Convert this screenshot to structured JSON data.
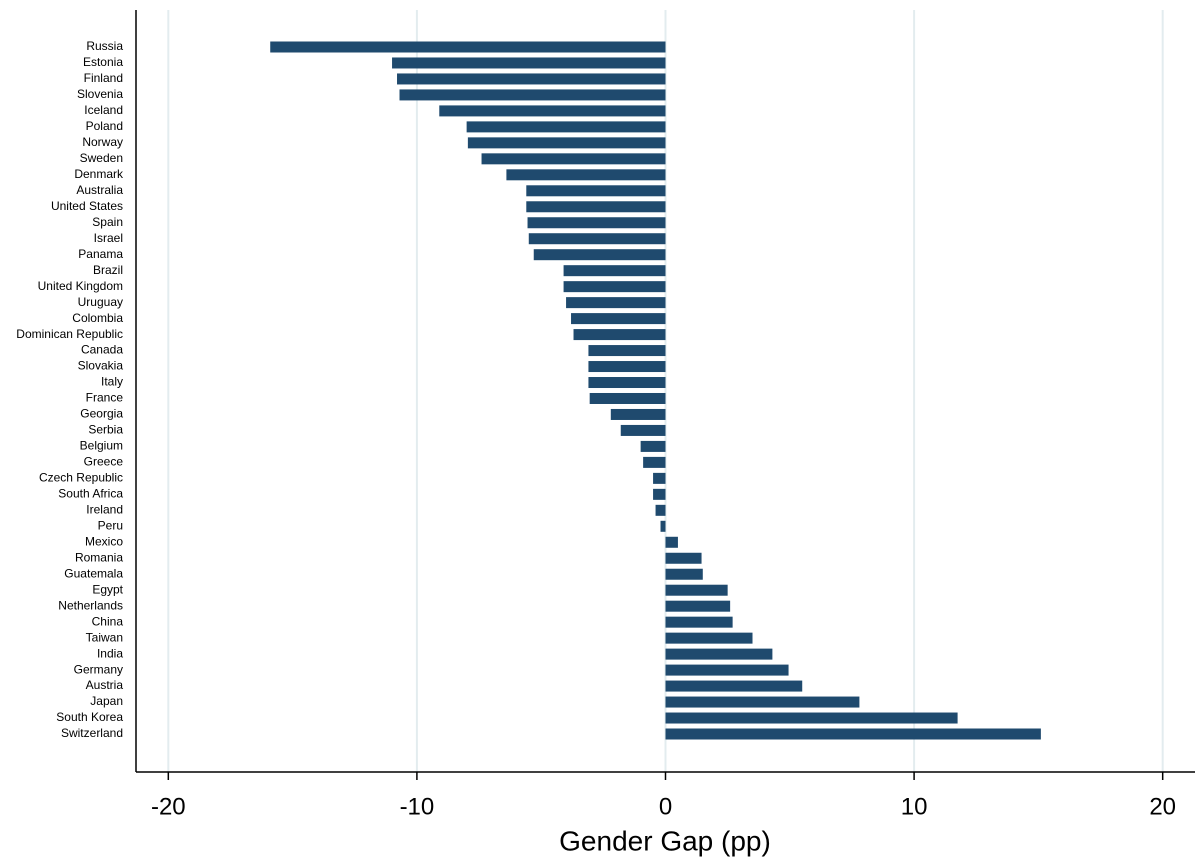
{
  "chart_data": {
    "type": "bar",
    "orientation": "horizontal",
    "x_label": "Gender Gap (pp)",
    "categories": [
      "Russia",
      "Estonia",
      "Finland",
      "Slovenia",
      "Iceland",
      "Poland",
      "Norway",
      "Sweden",
      "Denmark",
      "Australia",
      "United States",
      "Spain",
      "Israel",
      "Panama",
      "Brazil",
      "United Kingdom",
      "Uruguay",
      "Colombia",
      "Dominican Republic",
      "Canada",
      "Slovakia",
      "Italy",
      "France",
      "Georgia",
      "Serbia",
      "Belgium",
      "Greece",
      "Czech Republic",
      "South Africa",
      "Ireland",
      "Peru",
      "Mexico",
      "Romania",
      "Guatemala",
      "Egypt",
      "Netherlands",
      "China",
      "Taiwan",
      "India",
      "Germany",
      "Austria",
      "Japan",
      "South Korea",
      "Switzerland"
    ],
    "values": [
      -15.9,
      -11.0,
      -10.8,
      -10.7,
      -9.1,
      -8.0,
      -7.95,
      -7.4,
      -6.4,
      -5.6,
      -5.6,
      -5.55,
      -5.5,
      -5.3,
      -4.1,
      -4.1,
      -4.0,
      -3.8,
      -3.7,
      -3.1,
      -3.1,
      -3.1,
      -3.05,
      -2.2,
      -1.8,
      -1.0,
      -0.9,
      -0.5,
      -0.5,
      -0.4,
      -0.2,
      0.5,
      1.45,
      1.5,
      2.5,
      2.6,
      2.7,
      3.5,
      4.3,
      4.95,
      5.5,
      7.8,
      11.75,
      15.1
    ],
    "color": "#1f4a6e",
    "xlim": [
      -21.3,
      21.3
    ],
    "xticks": [
      -20,
      -10,
      0,
      10,
      20
    ],
    "grid": true
  }
}
